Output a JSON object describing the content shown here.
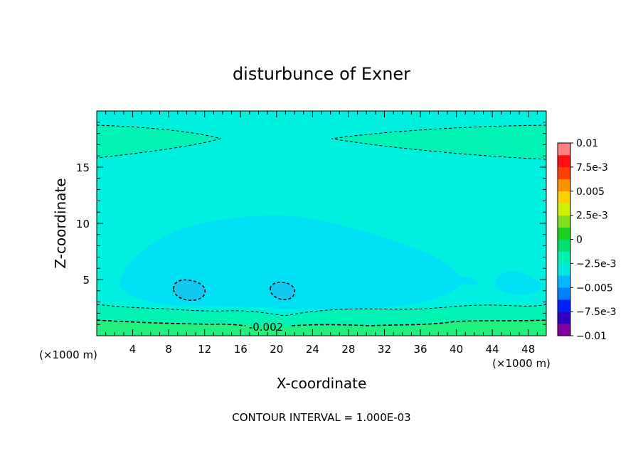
{
  "chart_data": {
    "type": "contour",
    "title": "disturbunce of Exner",
    "xlabel": "X-coordinate",
    "ylabel": "Z-coordinate",
    "x_unit_label_left": "(×1000 m)",
    "x_unit_label_right": "(×1000 m)",
    "xlim": [
      0,
      50
    ],
    "ylim": [
      0,
      20
    ],
    "xticks": [
      4,
      8,
      12,
      16,
      20,
      24,
      28,
      32,
      36,
      40,
      44,
      48
    ],
    "yticks": [
      5,
      10,
      15
    ],
    "footer": "CONTOUR INTERVAL = 1.000E-03",
    "contour_interval": 0.001,
    "contour_label": "-0.002",
    "colorbar": {
      "min": -0.01,
      "max": 0.01,
      "tick_labels": [
        "0.01",
        "7.5e-3",
        "0.005",
        "2.5e-3",
        "0",
        "-2.5e-3",
        "-0.005",
        "-7.5e-3",
        "-0.01"
      ],
      "colors": [
        "#8000a0",
        "#3000c0",
        "#0020ff",
        "#0080ff",
        "#00b8ff",
        "#00e8e0",
        "#00f0b0",
        "#00e070",
        "#20d020",
        "#80e020",
        "#d0f000",
        "#ffd000",
        "#ff9000",
        "#ff4000",
        "#ff1010",
        "#ff8080"
      ]
    },
    "fill_levels": [
      {
        "range": [
          -0.002,
          -0.001
        ],
        "color": "#22f07e"
      },
      {
        "range": [
          -0.003,
          -0.002
        ],
        "color": "#00f3b4"
      },
      {
        "range": [
          -0.004,
          -0.003
        ],
        "color": "#00f0e0"
      },
      {
        "range": [
          -0.005,
          -0.004
        ],
        "color": "#00e0f4"
      },
      {
        "range": [
          -0.006,
          -0.005
        ],
        "color": "#10c8f0"
      }
    ]
  }
}
